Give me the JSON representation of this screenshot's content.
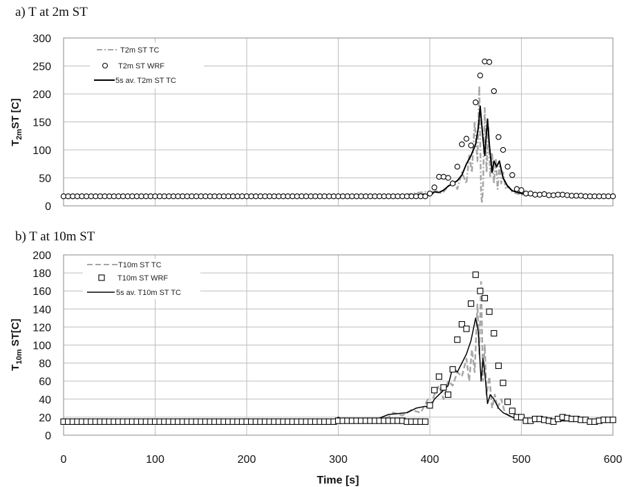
{
  "figure": {
    "xlabel": "Time [s]"
  },
  "chart_data": [
    {
      "type": "line",
      "panel": "a) T at 2m ST",
      "title": "a) T at 2m ST",
      "ylabel": "T2mST [C]",
      "ylabel_main": "T",
      "ylabel_sub": "2m",
      "ylabel_rest": "ST [C]",
      "xlabel": "Time [s]",
      "xlim": [
        0,
        600
      ],
      "ylim": [
        0,
        300
      ],
      "xticks": [
        0,
        100,
        200,
        300,
        400,
        500,
        600
      ],
      "yticks": [
        0,
        50,
        100,
        150,
        200,
        250,
        300
      ],
      "grid": true,
      "legend_position": "top-left",
      "colors": {
        "tc": "#a6a6a6",
        "wrf": "#000000",
        "avg": "#000000"
      },
      "series": [
        {
          "name": "T2m ST TC",
          "style": "dash-dot",
          "x": [
            0,
            100,
            200,
            300,
            350,
            370,
            385,
            395,
            400,
            405,
            410,
            415,
            420,
            425,
            430,
            435,
            440,
            443,
            446,
            449,
            452,
            454,
            456,
            457,
            458,
            460,
            462,
            464,
            466,
            468,
            470,
            472,
            474,
            476,
            478,
            480,
            483,
            486,
            490,
            495,
            500,
            510,
            530,
            560,
            600
          ],
          "y": [
            18,
            18,
            18,
            18,
            18,
            19,
            23,
            25,
            18,
            30,
            22,
            25,
            35,
            45,
            30,
            60,
            40,
            90,
            60,
            150,
            80,
            215,
            20,
            5,
            30,
            175,
            60,
            140,
            50,
            95,
            40,
            85,
            30,
            70,
            40,
            60,
            30,
            35,
            25,
            22,
            20,
            19,
            18,
            18,
            18
          ]
        },
        {
          "name": "T2m ST WRF",
          "style": "circle",
          "x": [
            0,
            5,
            10,
            15,
            20,
            25,
            30,
            35,
            40,
            45,
            50,
            55,
            60,
            65,
            70,
            75,
            80,
            85,
            90,
            95,
            100,
            105,
            110,
            115,
            120,
            125,
            130,
            135,
            140,
            145,
            150,
            155,
            160,
            165,
            170,
            175,
            180,
            185,
            190,
            195,
            200,
            205,
            210,
            215,
            220,
            225,
            230,
            235,
            240,
            245,
            250,
            255,
            260,
            265,
            270,
            275,
            280,
            285,
            290,
            295,
            300,
            305,
            310,
            315,
            320,
            325,
            330,
            335,
            340,
            345,
            350,
            355,
            360,
            365,
            370,
            375,
            380,
            385,
            390,
            395,
            400,
            405,
            410,
            415,
            420,
            425,
            430,
            435,
            440,
            445,
            450,
            455,
            460,
            465,
            470,
            475,
            480,
            485,
            490,
            495,
            500,
            505,
            510,
            515,
            520,
            525,
            530,
            535,
            540,
            545,
            550,
            555,
            560,
            565,
            570,
            575,
            580,
            585,
            590,
            595,
            600
          ],
          "y": [
            17,
            17,
            17,
            17,
            17,
            17,
            17,
            17,
            17,
            17,
            17,
            17,
            17,
            17,
            17,
            17,
            17,
            17,
            17,
            17,
            17,
            17,
            17,
            17,
            17,
            17,
            17,
            17,
            17,
            17,
            17,
            17,
            17,
            17,
            17,
            17,
            17,
            17,
            17,
            17,
            17,
            17,
            17,
            17,
            17,
            17,
            17,
            17,
            17,
            17,
            17,
            17,
            17,
            17,
            17,
            17,
            17,
            17,
            17,
            17,
            17,
            17,
            17,
            17,
            17,
            17,
            17,
            17,
            17,
            17,
            17,
            17,
            17,
            17,
            17,
            17,
            17,
            17,
            17,
            17,
            22,
            33,
            52,
            52,
            50,
            40,
            70,
            110,
            120,
            108,
            185,
            233,
            258,
            257,
            205,
            123,
            100,
            70,
            55,
            30,
            28,
            22,
            22,
            20,
            20,
            21,
            19,
            19,
            20,
            20,
            19,
            18,
            18,
            18,
            17,
            17,
            17,
            17,
            17,
            17,
            17
          ]
        },
        {
          "name": "5s av. T2m ST TC",
          "style": "solid",
          "x": [
            0,
            100,
            200,
            300,
            350,
            380,
            395,
            400,
            405,
            410,
            415,
            420,
            425,
            430,
            435,
            440,
            445,
            450,
            453,
            455,
            458,
            460,
            463,
            465,
            468,
            470,
            473,
            476,
            480,
            485,
            490,
            500,
            520,
            560,
            600
          ],
          "y": [
            18,
            18,
            18,
            18,
            18,
            19,
            21,
            18,
            25,
            24,
            28,
            35,
            40,
            45,
            55,
            75,
            90,
            110,
            140,
            178,
            120,
            90,
            155,
            110,
            60,
            80,
            70,
            80,
            50,
            35,
            27,
            22,
            20,
            18,
            18
          ]
        }
      ]
    },
    {
      "type": "line",
      "panel": "b) T at 10m ST",
      "title": "b) T at 10m ST",
      "ylabel": "T10m ST[C]",
      "ylabel_main": "T",
      "ylabel_sub": "10m",
      "ylabel_rest": " ST[C]",
      "xlabel": "Time [s]",
      "xlim": [
        0,
        600
      ],
      "ylim": [
        0,
        200
      ],
      "xticks": [
        0,
        100,
        200,
        300,
        400,
        500,
        600
      ],
      "yticks": [
        0,
        20,
        40,
        60,
        80,
        100,
        120,
        140,
        160,
        180,
        200
      ],
      "grid": true,
      "legend_position": "top-left",
      "colors": {
        "tc": "#a6a6a6",
        "wrf": "#000000",
        "avg": "#000000"
      },
      "series": [
        {
          "name": "T10m ST TC",
          "style": "dashed",
          "x": [
            0,
            100,
            200,
            295,
            300,
            305,
            340,
            355,
            360,
            370,
            380,
            390,
            398,
            400,
            405,
            410,
            415,
            420,
            425,
            430,
            435,
            440,
            443,
            446,
            449,
            452,
            454,
            456,
            458,
            460,
            462,
            465,
            468,
            471,
            474,
            478,
            482,
            486,
            490,
            495,
            500,
            520,
            560,
            600
          ],
          "y": [
            15,
            15,
            15,
            15,
            18,
            15,
            16,
            20,
            25,
            22,
            28,
            25,
            40,
            30,
            45,
            55,
            40,
            60,
            55,
            70,
            65,
            85,
            60,
            95,
            70,
            145,
            90,
            170,
            60,
            100,
            45,
            65,
            30,
            45,
            30,
            40,
            25,
            22,
            20,
            18,
            17,
            16,
            16,
            16
          ]
        },
        {
          "name": "T10m ST WRF",
          "style": "square",
          "x": [
            0,
            5,
            10,
            15,
            20,
            25,
            30,
            35,
            40,
            45,
            50,
            55,
            60,
            65,
            70,
            75,
            80,
            85,
            90,
            95,
            100,
            105,
            110,
            115,
            120,
            125,
            130,
            135,
            140,
            145,
            150,
            155,
            160,
            165,
            170,
            175,
            180,
            185,
            190,
            195,
            200,
            205,
            210,
            215,
            220,
            225,
            230,
            235,
            240,
            245,
            250,
            255,
            260,
            265,
            270,
            275,
            280,
            285,
            290,
            295,
            300,
            305,
            310,
            315,
            320,
            325,
            330,
            335,
            340,
            345,
            350,
            355,
            360,
            365,
            370,
            375,
            380,
            385,
            390,
            395,
            400,
            405,
            410,
            415,
            420,
            425,
            430,
            435,
            440,
            445,
            450,
            455,
            460,
            465,
            470,
            475,
            480,
            485,
            490,
            495,
            500,
            505,
            510,
            515,
            520,
            525,
            530,
            535,
            540,
            545,
            550,
            555,
            560,
            565,
            570,
            575,
            580,
            585,
            590,
            595,
            600
          ],
          "y": [
            15,
            15,
            15,
            15,
            15,
            15,
            15,
            15,
            15,
            15,
            15,
            15,
            15,
            15,
            15,
            15,
            15,
            15,
            15,
            15,
            15,
            15,
            15,
            15,
            15,
            15,
            15,
            15,
            15,
            15,
            15,
            15,
            15,
            15,
            15,
            15,
            15,
            15,
            15,
            15,
            15,
            15,
            15,
            15,
            15,
            15,
            15,
            15,
            15,
            15,
            15,
            15,
            15,
            15,
            15,
            15,
            15,
            15,
            15,
            15,
            16,
            16,
            16,
            16,
            16,
            16,
            16,
            16,
            16,
            16,
            16,
            16,
            16,
            16,
            16,
            15,
            15,
            15,
            15,
            15,
            33,
            50,
            65,
            53,
            45,
            73,
            106,
            123,
            118,
            146,
            178,
            160,
            152,
            137,
            113,
            77,
            58,
            37,
            27,
            20,
            20,
            16,
            16,
            18,
            18,
            17,
            16,
            15,
            18,
            20,
            19,
            18,
            18,
            17,
            17,
            15,
            15,
            16,
            17,
            17,
            17
          ]
        },
        {
          "name": "5s av. T10m ST TC",
          "style": "solid",
          "x": [
            0,
            100,
            200,
            295,
            300,
            305,
            340,
            355,
            365,
            375,
            385,
            395,
            400,
            405,
            410,
            415,
            420,
            425,
            430,
            435,
            440,
            445,
            450,
            453,
            456,
            458,
            460,
            463,
            466,
            470,
            475,
            480,
            490,
            500,
            520,
            560,
            600
          ],
          "y": [
            16,
            16,
            16,
            16,
            20,
            17,
            17,
            23,
            24,
            25,
            30,
            32,
            30,
            40,
            45,
            50,
            55,
            75,
            70,
            80,
            90,
            105,
            130,
            115,
            60,
            85,
            70,
            35,
            45,
            40,
            30,
            25,
            20,
            17,
            16,
            16,
            16
          ]
        }
      ]
    }
  ]
}
